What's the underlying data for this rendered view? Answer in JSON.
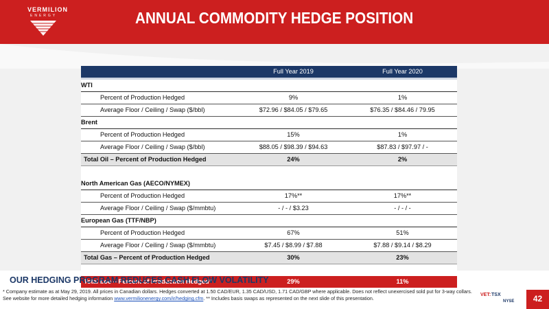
{
  "brand": {
    "name": "VERMILION",
    "sub": "ENERGY"
  },
  "title": "ANNUAL COMMODITY HEDGE POSITION",
  "table": {
    "col1": "Full Year 2019",
    "col2": "Full Year 2020",
    "wti": {
      "label": "WTI",
      "pct": {
        "label": "Percent of Production Hedged",
        "y2019": "9%",
        "y2020": "1%"
      },
      "swap": {
        "label": "Average Floor / Ceiling / Swap ($/bbl)",
        "y2019": "$72.96 / $84.05 / $79.65",
        "y2020": "$76.35 / $84.46 / 79.95"
      }
    },
    "brent": {
      "label": "Brent",
      "pct": {
        "label": "Percent of Production Hedged",
        "y2019": "15%",
        "y2020": "1%"
      },
      "swap": {
        "label": "Average Floor / Ceiling / Swap ($/bbl)",
        "y2019": "$88.05 / $98.39 / $94.63",
        "y2020": "$87.83 / $97.97 / -"
      }
    },
    "total_oil": {
      "label": "Total Oil – Percent of Production Hedged",
      "y2019": "24%",
      "y2020": "2%"
    },
    "nagas": {
      "label": "North American Gas (AECO/NYMEX)",
      "pct": {
        "label": "Percent of Production Hedged",
        "y2019": "17%**",
        "y2020": "17%**"
      },
      "swap": {
        "label": "Average Floor / Ceiling / Swap ($/mmbtu)",
        "y2019": "- / - / $3.23",
        "y2020": "- / - / -"
      }
    },
    "eugas": {
      "label": "European Gas (TTF/NBP)",
      "pct": {
        "label": "Percent of Production Hedged",
        "y2019": "67%",
        "y2020": "51%"
      },
      "swap": {
        "label": "Average Floor / Ceiling / Swap ($/mmbtu)",
        "y2019": "$7.45 / $8.99 / $7.88",
        "y2020": "$7.88 / $9.14 / $8.29"
      }
    },
    "total_gas": {
      "label": "Total Gas – Percent of Production Hedged",
      "y2019": "30%",
      "y2020": "23%"
    },
    "total_boe": {
      "label": "Total boe – Percent of Production Hedged*",
      "y2019": "29%",
      "y2020": "11%"
    }
  },
  "tagline": "OUR HEDGING PROGRAM REDUCES CASH FLOW VOLATILITY",
  "footnote": {
    "part1": "* Company estimate as at May 29, 2019. All prices in Canadian dollars. Hedges converted at 1.50 CAD/EUR, 1.35 CAD/USD, 1.71 CAD/GBP where applicable. Does not reflect unexercised sold put for 3-way collars. See website for more detailed hedging information ",
    "link": "www.vermilionenergy.com/ir/hedging.cfm",
    "part2": ". ** Includes basis swaps as represented on the next slide of this presentation."
  },
  "exchange": {
    "vet": "VET:",
    "tsx": "TSX",
    "nyse": "NYSE"
  },
  "page_number": "42",
  "colors": {
    "brand_red": "#cc1f1f",
    "navy": "#1c3867"
  }
}
